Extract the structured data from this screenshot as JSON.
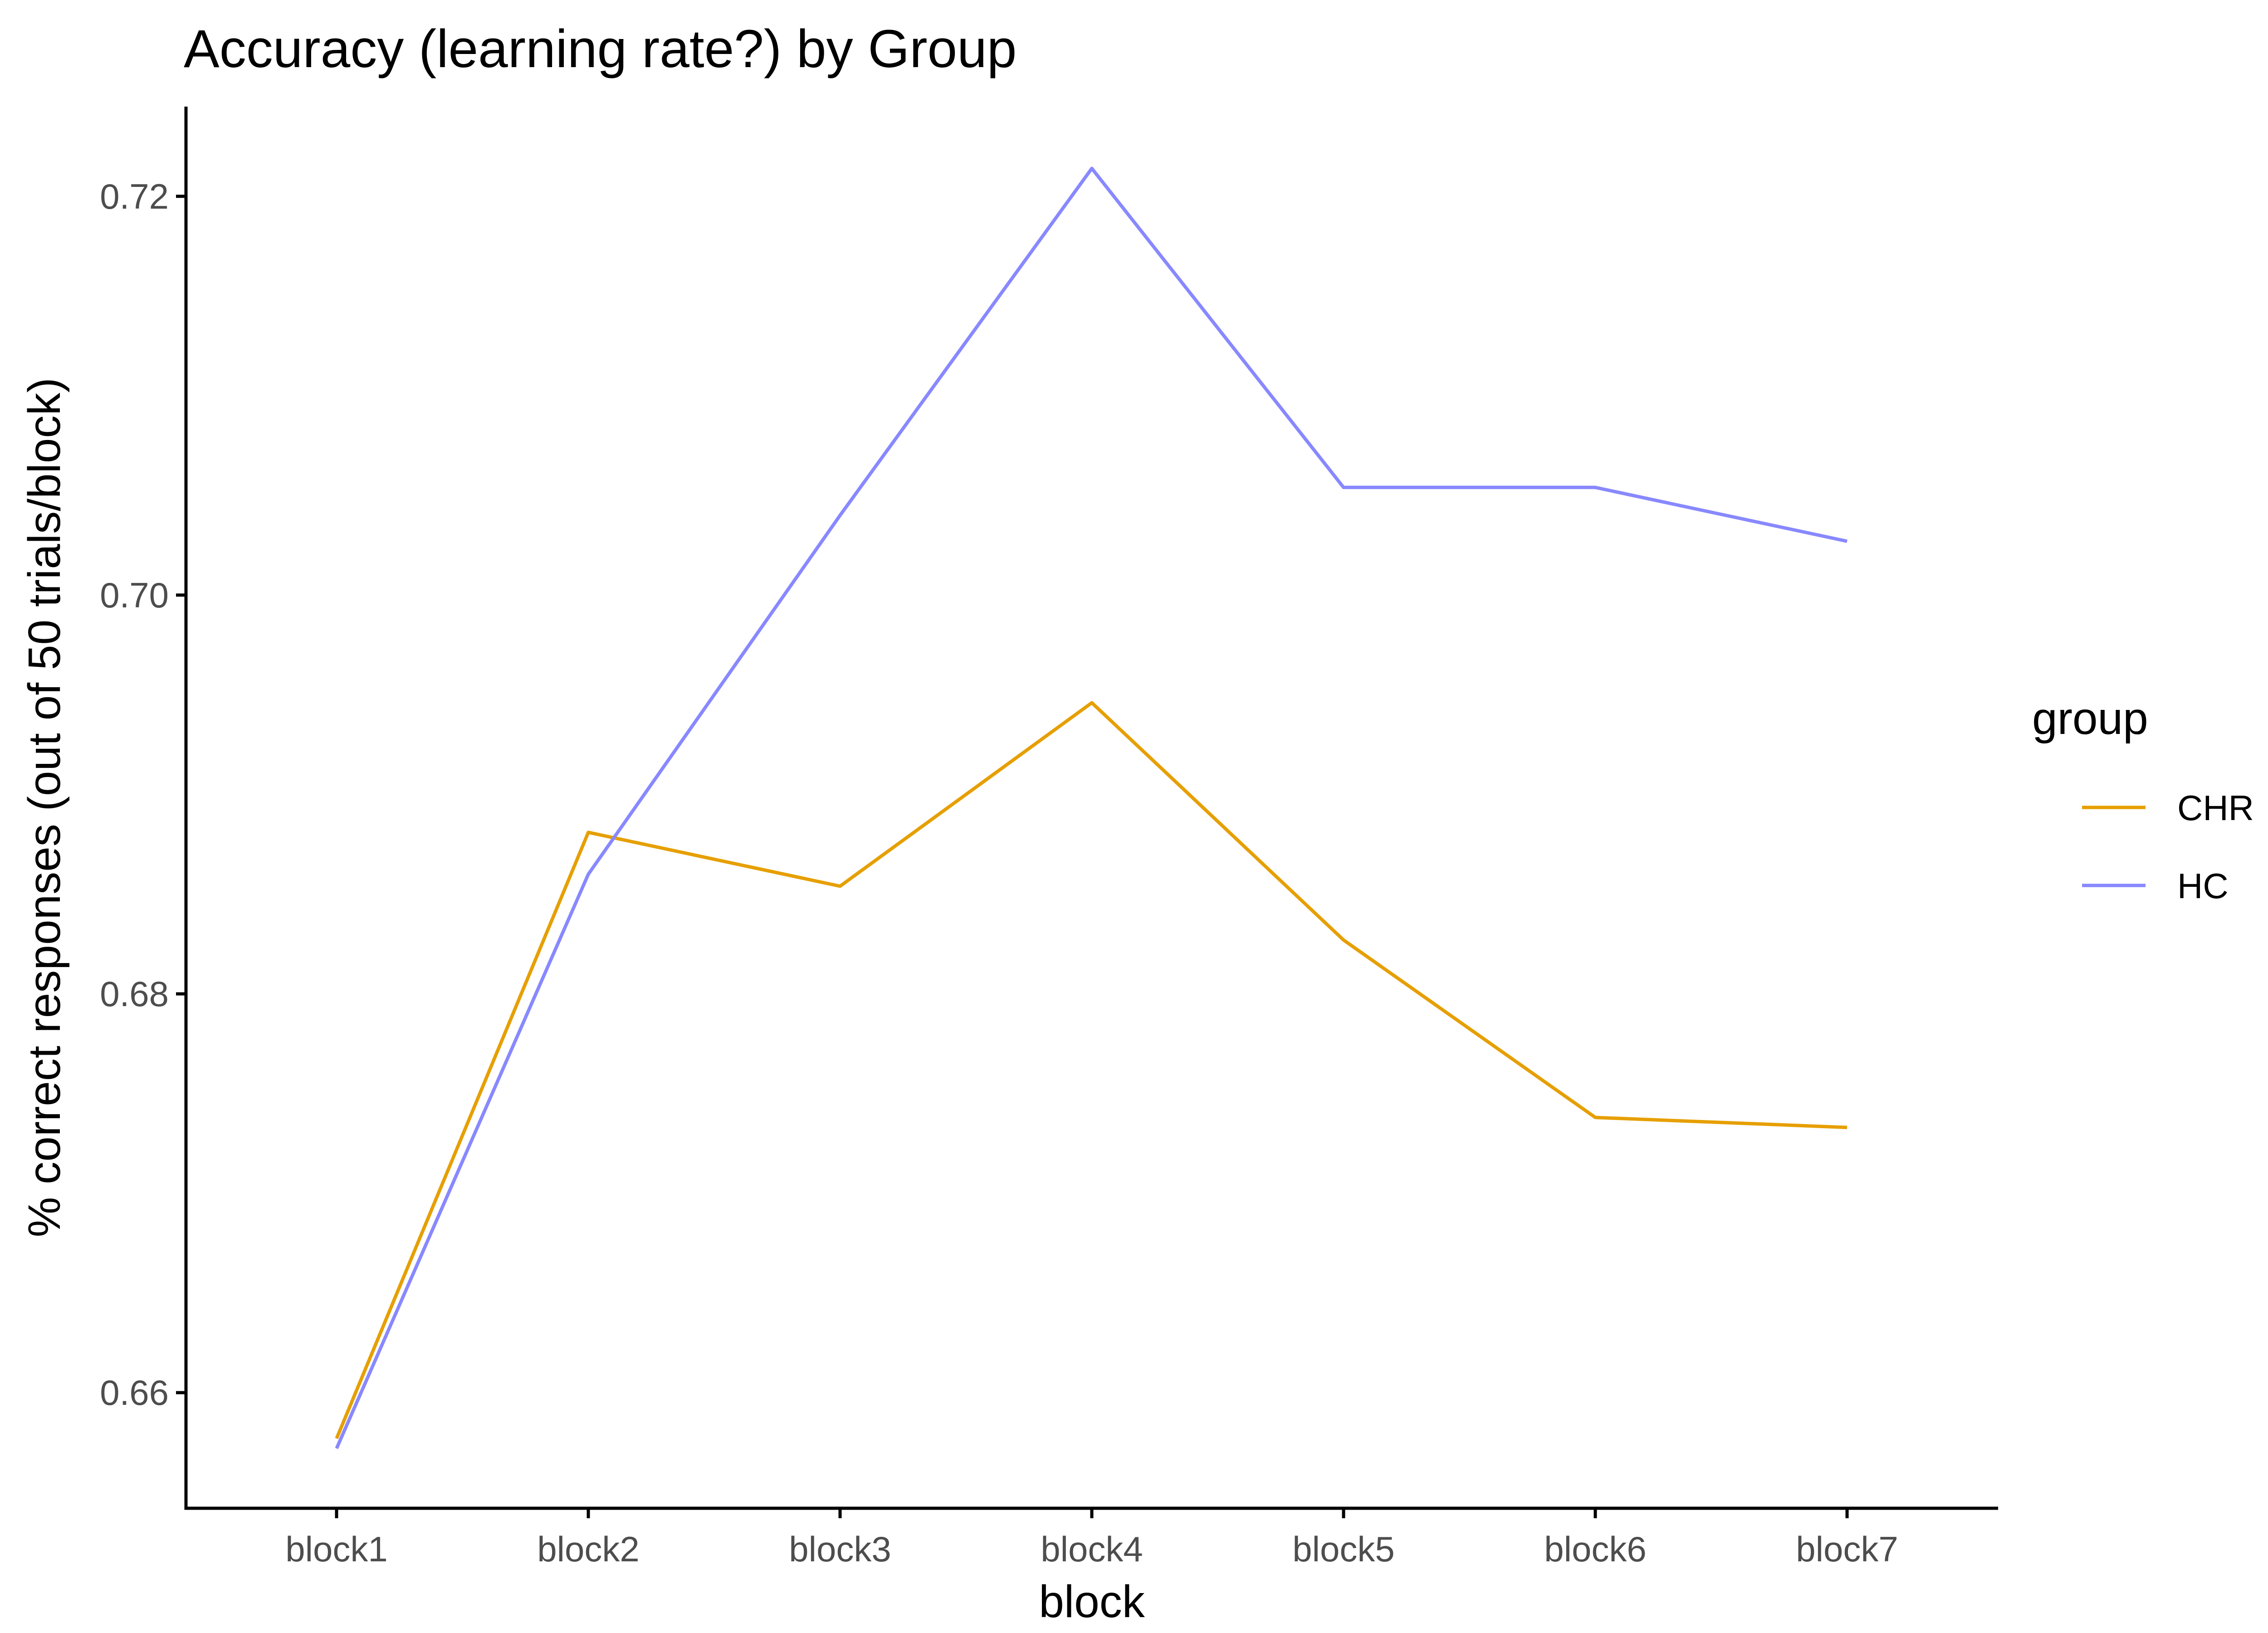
{
  "chart_data": {
    "type": "line",
    "title": "Accuracy (learning rate?) by Group",
    "xlabel": "block",
    "ylabel": "% correct responses (out of 50 trials/block)",
    "categories": [
      "block1",
      "block2",
      "block3",
      "block4",
      "block5",
      "block6",
      "block7"
    ],
    "y_ticks": [
      0.66,
      0.68,
      0.7,
      0.72
    ],
    "y_tick_labels": [
      "0.66",
      "0.68",
      "0.70",
      "0.72"
    ],
    "ylim": [
      0.6542,
      0.7245
    ],
    "grid": false,
    "legend": {
      "title": "group",
      "position": "right"
    },
    "series": [
      {
        "name": "CHR",
        "color": "#E69F00",
        "values": [
          0.6577,
          0.6881,
          0.6854,
          0.6946,
          0.6827,
          0.6738,
          0.6733
        ]
      },
      {
        "name": "HC",
        "color": "#8888FF",
        "values": [
          0.6572,
          0.686,
          0.704,
          0.7214,
          0.7054,
          0.7054,
          0.7027
        ]
      }
    ]
  }
}
